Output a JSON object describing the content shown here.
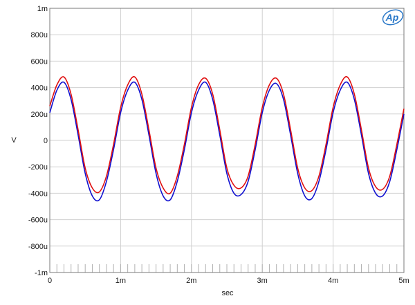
{
  "chart_data": {
    "type": "line",
    "title": "",
    "xlabel": "sec",
    "ylabel": "V",
    "xlim": [
      0,
      0.005
    ],
    "ylim": [
      -0.001,
      0.001
    ],
    "x_ticks": [
      0,
      0.001,
      0.002,
      0.003,
      0.004,
      0.005
    ],
    "x_tick_labels": [
      "0",
      "1m",
      "2m",
      "3m",
      "4m",
      "5m"
    ],
    "y_ticks": [
      0.001,
      0.0008,
      0.0006,
      0.0004,
      0.0002,
      0,
      -0.0002,
      -0.0004,
      -0.0006,
      -0.0008,
      -0.001
    ],
    "y_tick_labels": [
      "1m",
      "800u",
      "600u",
      "400u",
      "200u",
      "0",
      "-200u",
      "-400u",
      "-600u",
      "-800u",
      "-1m"
    ],
    "grid": true,
    "legend": "none",
    "series": [
      {
        "color": "#1010d0",
        "x": [
          0,
          0.0001,
          0.0002,
          0.0003,
          0.0004,
          0.0005,
          0.0006,
          0.0007,
          0.0008,
          0.0009,
          0.001,
          0.0011,
          0.0012,
          0.0013,
          0.0014,
          0.0015,
          0.0016,
          0.0017,
          0.0018,
          0.0019,
          0.002,
          0.0021,
          0.0022,
          0.0023,
          0.0024,
          0.0025,
          0.0026,
          0.0027,
          0.0028,
          0.0029,
          0.003,
          0.0031,
          0.0032,
          0.0033,
          0.0034,
          0.0035,
          0.0036,
          0.0037,
          0.0038,
          0.0039,
          0.004,
          0.0041,
          0.0042,
          0.0043,
          0.0044,
          0.0045,
          0.0046,
          0.0047,
          0.0048,
          0.0049,
          0.005
        ],
        "values": [
          0.00021,
          0.00038,
          0.00044,
          0.00031,
          4e-05,
          -0.00025,
          -0.00042,
          -0.00045,
          -0.00031,
          -7e-05,
          0.00021,
          0.00038,
          0.00044,
          0.00031,
          4e-05,
          -0.00025,
          -0.00042,
          -0.00045,
          -0.00031,
          -7e-05,
          0.00021,
          0.00038,
          0.00044,
          0.00031,
          4e-05,
          -0.00025,
          -0.0004,
          -0.00041,
          -0.00031,
          -7e-05,
          0.00021,
          0.00038,
          0.00043,
          0.00031,
          4e-05,
          -0.00025,
          -0.00042,
          -0.00044,
          -0.00031,
          -7e-05,
          0.00021,
          0.00038,
          0.00044,
          0.00031,
          4e-05,
          -0.00025,
          -0.0004,
          -0.00042,
          -0.00031,
          -7e-05,
          0.0002
        ]
      },
      {
        "color": "#e01010",
        "x": [
          0,
          0.0001,
          0.0002,
          0.0003,
          0.0004,
          0.0005,
          0.0006,
          0.0007,
          0.0008,
          0.0009,
          0.001,
          0.0011,
          0.0012,
          0.0013,
          0.0014,
          0.0015,
          0.0016,
          0.0017,
          0.0018,
          0.0019,
          0.002,
          0.0021,
          0.0022,
          0.0023,
          0.0024,
          0.0025,
          0.0026,
          0.0027,
          0.0028,
          0.0029,
          0.003,
          0.0031,
          0.0032,
          0.0033,
          0.0034,
          0.0035,
          0.0036,
          0.0037,
          0.0038,
          0.0039,
          0.004,
          0.0041,
          0.0042,
          0.0043,
          0.0044,
          0.0045,
          0.0046,
          0.0047,
          0.0048,
          0.0049,
          0.005
        ],
        "values": [
          0.00026,
          0.00042,
          0.00048,
          0.00035,
          8e-05,
          -0.00021,
          -0.00036,
          -0.00039,
          -0.00027,
          -3e-05,
          0.00025,
          0.00042,
          0.00048,
          0.00035,
          8e-05,
          -0.00021,
          -0.00036,
          -0.0004,
          -0.00027,
          -3e-05,
          0.00025,
          0.00042,
          0.00047,
          0.00035,
          8e-05,
          -0.00021,
          -0.00034,
          -0.00036,
          -0.00027,
          -3e-05,
          0.00025,
          0.00042,
          0.00047,
          0.00035,
          8e-05,
          -0.00021,
          -0.00036,
          -0.00038,
          -0.00027,
          -3e-05,
          0.00025,
          0.00042,
          0.00048,
          0.00035,
          8e-05,
          -0.00021,
          -0.00035,
          -0.00037,
          -0.00027,
          -3e-05,
          0.00024
        ]
      }
    ]
  },
  "logo": {
    "text": "Ap",
    "color": "#2a78c8"
  }
}
